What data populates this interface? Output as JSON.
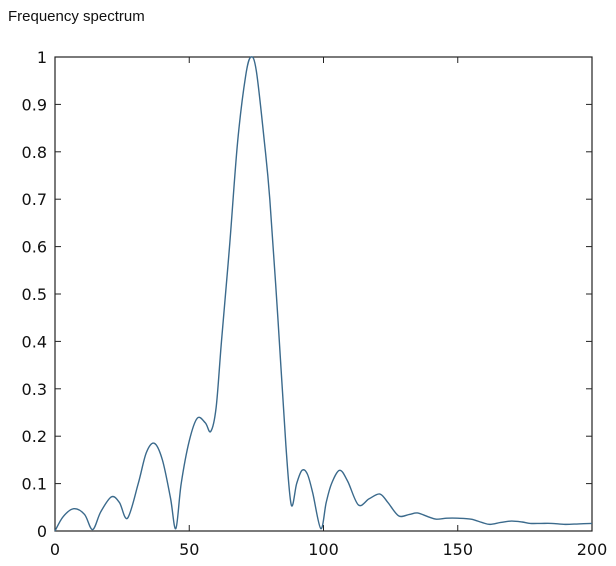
{
  "chart_data": {
    "type": "line",
    "title": "Frequency spectrum",
    "xlabel": "",
    "ylabel": "",
    "xlim": [
      0,
      200
    ],
    "ylim": [
      0,
      1
    ],
    "xticks": [
      0,
      50,
      100,
      150,
      200
    ],
    "yticks": [
      0,
      0.1,
      0.2,
      0.3,
      0.4,
      0.5,
      0.6,
      0.7,
      0.8,
      0.9,
      1
    ],
    "grid": false,
    "line_color": "#3b6a8c",
    "x": [
      0,
      3,
      7,
      11,
      14,
      17,
      21,
      24,
      27,
      31,
      34,
      37,
      40,
      43,
      45,
      47,
      50,
      53,
      56,
      58,
      60,
      62,
      65,
      68,
      71,
      73,
      75,
      78,
      80,
      83,
      86,
      88,
      90,
      92,
      94,
      96,
      99,
      101,
      103,
      106,
      109,
      113,
      117,
      121,
      124,
      128,
      132,
      135,
      139,
      142,
      146,
      150,
      155,
      159,
      162,
      166,
      170,
      174,
      177,
      181,
      185,
      190,
      195,
      200
    ],
    "y": [
      0,
      0.03,
      0.047,
      0.035,
      0.003,
      0.04,
      0.072,
      0.06,
      0.027,
      0.1,
      0.165,
      0.185,
      0.15,
      0.07,
      0.005,
      0.1,
      0.19,
      0.238,
      0.228,
      0.21,
      0.26,
      0.4,
      0.6,
      0.82,
      0.96,
      1.0,
      0.97,
      0.82,
      0.7,
      0.45,
      0.18,
      0.055,
      0.1,
      0.128,
      0.12,
      0.08,
      0.005,
      0.06,
      0.1,
      0.128,
      0.105,
      0.055,
      0.068,
      0.078,
      0.06,
      0.032,
      0.035,
      0.038,
      0.03,
      0.025,
      0.027,
      0.027,
      0.025,
      0.018,
      0.014,
      0.018,
      0.021,
      0.019,
      0.016,
      0.016,
      0.016,
      0.014,
      0.015,
      0.016
    ]
  }
}
